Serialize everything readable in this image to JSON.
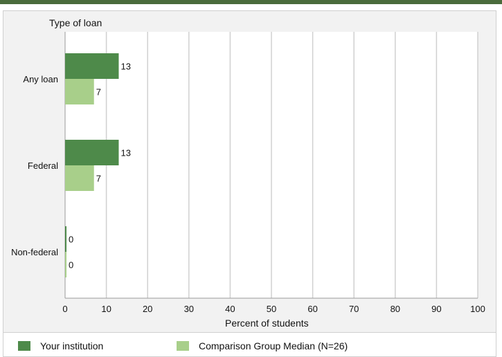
{
  "chart_data": {
    "type": "bar",
    "orientation": "horizontal",
    "ylabel": "Type of loan",
    "xlabel": "Percent of students",
    "categories": [
      "Any loan",
      "Federal",
      "Non-federal"
    ],
    "series": [
      {
        "name": "Your institution",
        "values": [
          13,
          13,
          0
        ],
        "color": "#4e8a4a"
      },
      {
        "name": "Comparison Group Median (N=26)",
        "values": [
          7,
          7,
          0
        ],
        "color": "#a8cf8a"
      }
    ],
    "xlim": [
      0,
      100
    ],
    "xticks": [
      0,
      10,
      20,
      30,
      40,
      50,
      60,
      70,
      80,
      90,
      100
    ],
    "grid": true,
    "legend_position": "bottom"
  }
}
